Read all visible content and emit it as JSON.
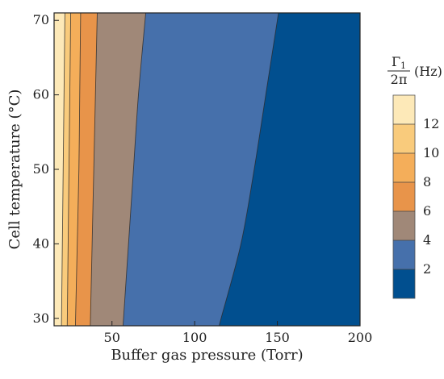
{
  "chart_data": {
    "type": "contour",
    "xlabel": "Buffer gas pressure (Torr)",
    "ylabel": "Cell temperature (°C)",
    "xlim": [
      15,
      200
    ],
    "ylim": [
      29,
      71
    ],
    "x_ticks": [
      50,
      100,
      150,
      200
    ],
    "y_ticks": [
      30,
      40,
      50,
      60,
      70
    ],
    "colorbar": {
      "title_numerator": "Γ",
      "title_subscript": "1",
      "title_denominator": "2π",
      "title_unit": "(Hz)",
      "ticks": [
        2,
        4,
        6,
        8,
        10,
        12
      ],
      "range": [
        0,
        14
      ]
    },
    "contour_levels": [
      {
        "level": 2,
        "points": [
          [
            116,
            30
          ],
          [
            128,
            40
          ],
          [
            136,
            50
          ],
          [
            143,
            60
          ],
          [
            150,
            70
          ]
        ]
      },
      {
        "level": 4,
        "points": [
          [
            57,
            30
          ],
          [
            60,
            40
          ],
          [
            63,
            50
          ],
          [
            66,
            60
          ],
          [
            70,
            70
          ]
        ]
      },
      {
        "level": 6,
        "points": [
          [
            37,
            30
          ],
          [
            38,
            40
          ],
          [
            39,
            50
          ],
          [
            40,
            60
          ],
          [
            41,
            70
          ]
        ]
      },
      {
        "level": 8,
        "points": [
          [
            28,
            30
          ],
          [
            29,
            40
          ],
          [
            30,
            50
          ],
          [
            30.5,
            60
          ],
          [
            31,
            70
          ]
        ]
      },
      {
        "level": 10,
        "points": [
          [
            23,
            30
          ],
          [
            23.5,
            40
          ],
          [
            24,
            50
          ],
          [
            24.5,
            60
          ],
          [
            25,
            70
          ]
        ]
      },
      {
        "level": 12,
        "points": [
          [
            19.5,
            30
          ],
          [
            20,
            40
          ],
          [
            20.5,
            50
          ],
          [
            21,
            60
          ],
          [
            21.5,
            70
          ]
        ]
      }
    ],
    "fill_colors": {
      "0-2": "#014f8f",
      "2-4": "#4670ab",
      "4-6": "#a08878",
      "6-8": "#e8944a",
      "8-10": "#f4ae5a",
      "10-12": "#f9cb7c",
      "12-14": "#fde9b8"
    },
    "grid": false
  }
}
